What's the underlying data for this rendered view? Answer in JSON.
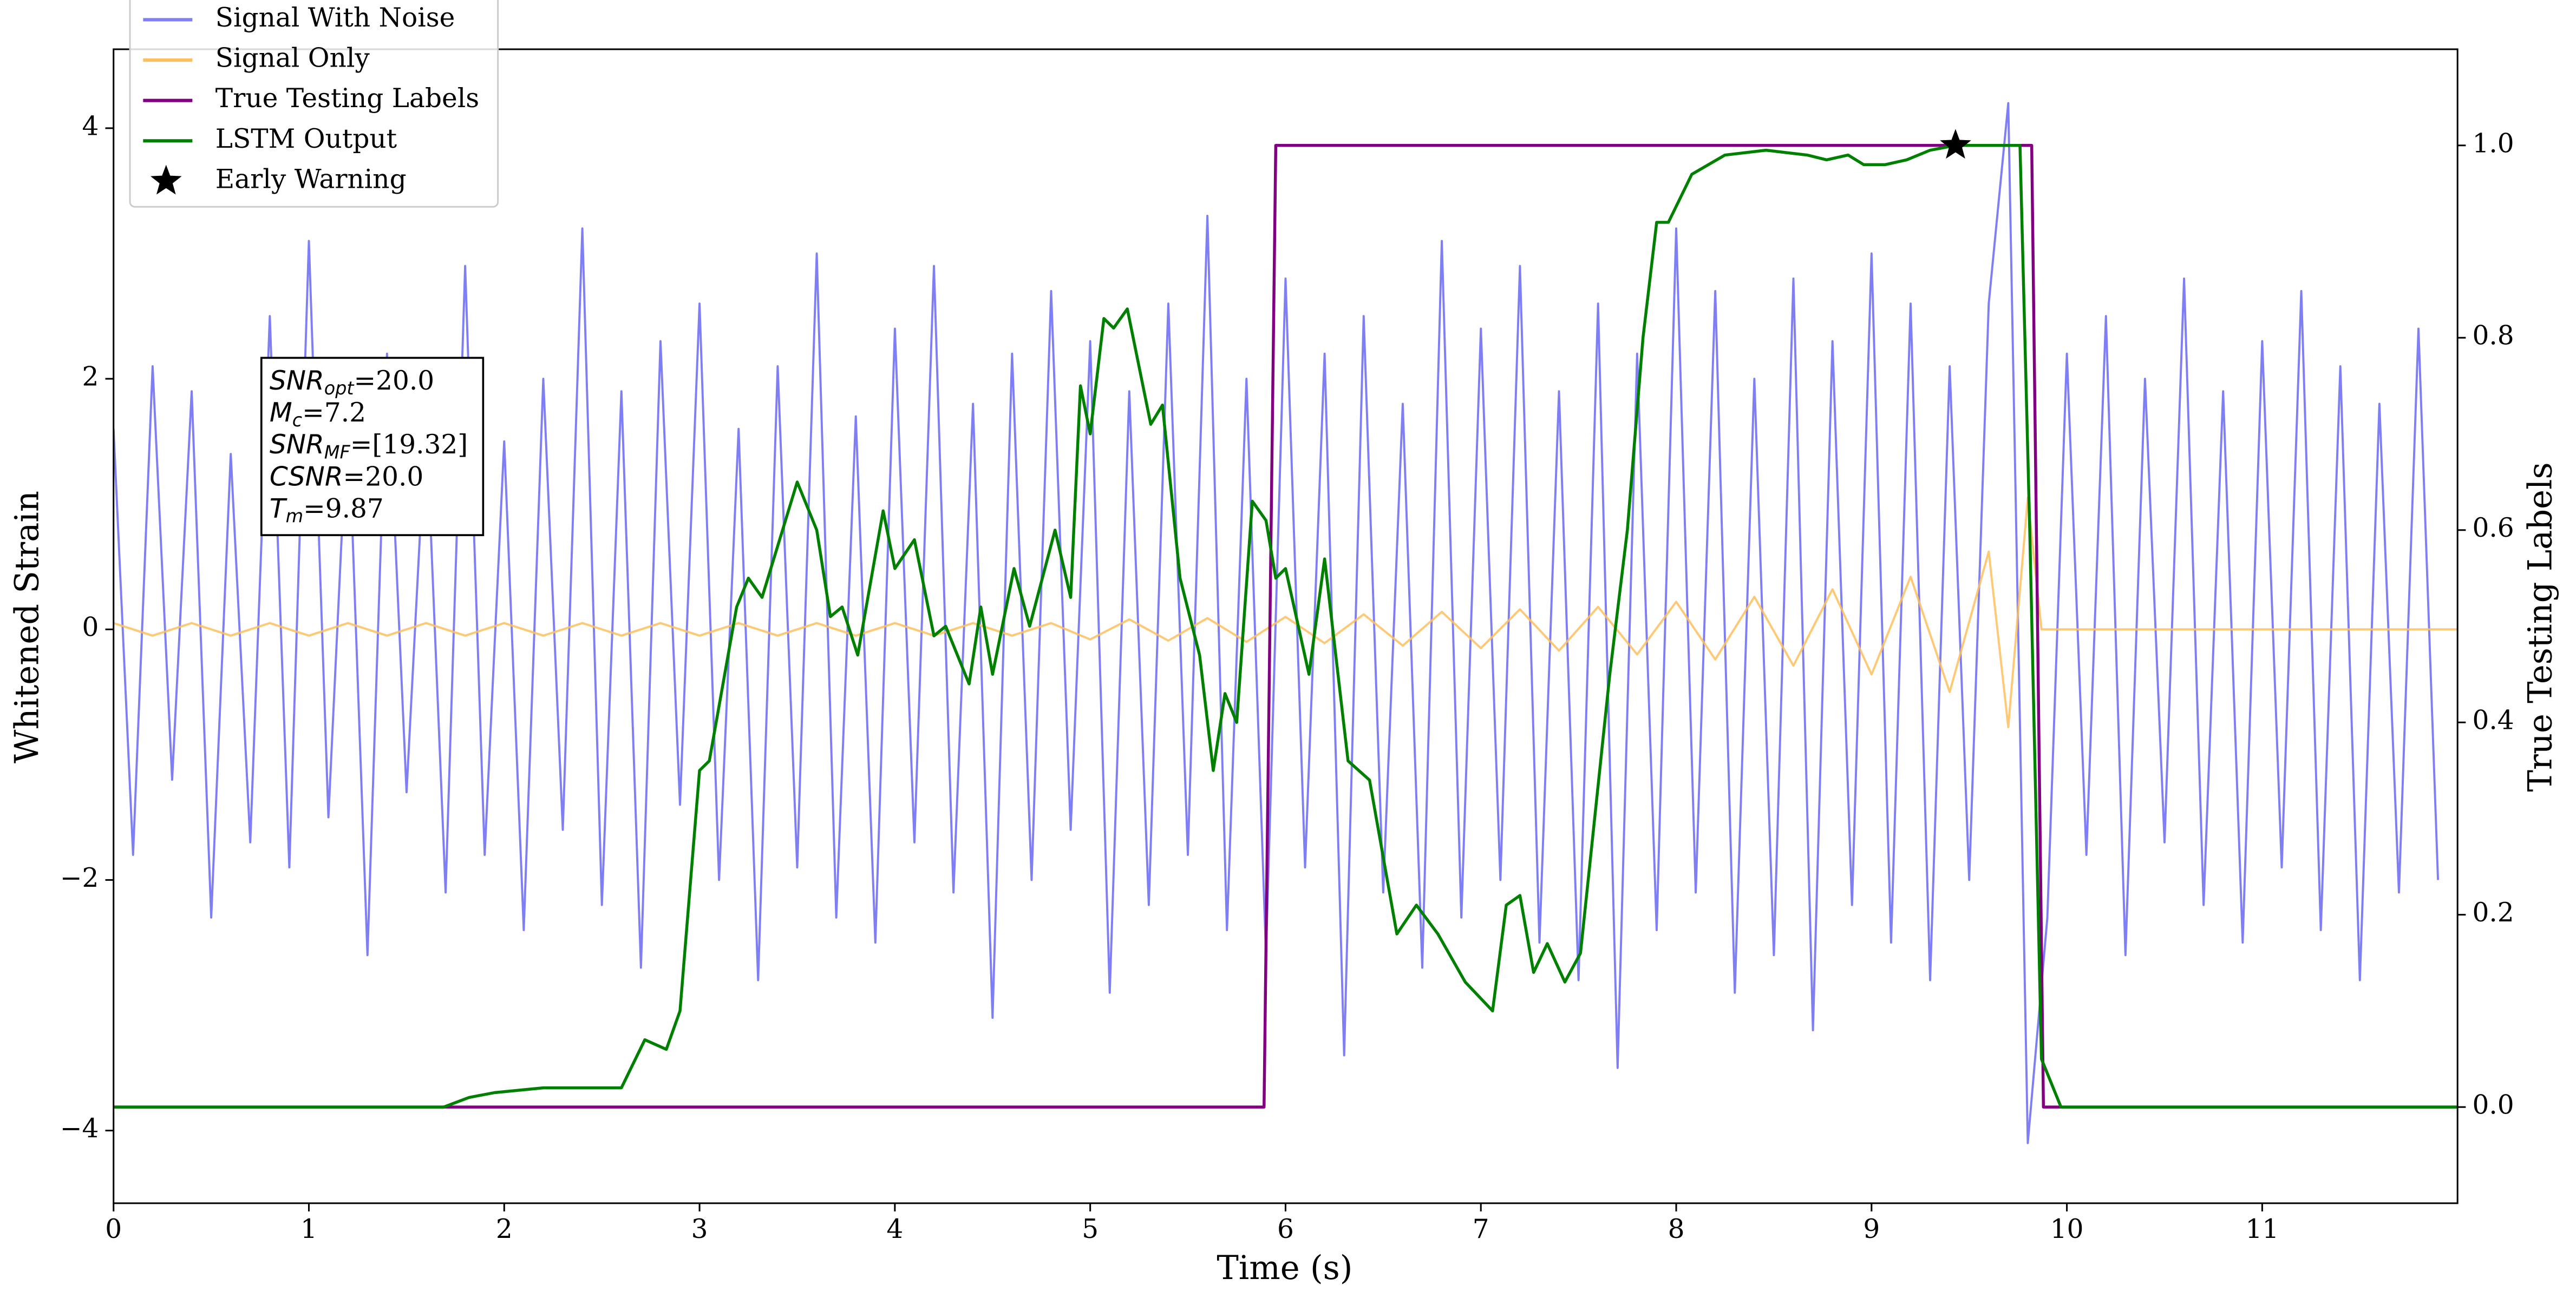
{
  "chart_data": {
    "type": "line",
    "xlabel": "Time (s)",
    "ylabel": "Whitened Strain",
    "y2label": "True Testing Labels",
    "xlim": [
      0,
      12.0
    ],
    "ylim": [
      -4.58,
      4.63
    ],
    "y2lim": [
      -0.1,
      1.1
    ],
    "xticks": [
      0,
      1,
      2,
      3,
      4,
      5,
      6,
      7,
      8,
      9,
      10,
      11
    ],
    "yticks": [
      {
        "value": -4,
        "label": "−4"
      },
      {
        "value": -2,
        "label": "−2"
      },
      0,
      2,
      4
    ],
    "y2ticks": [
      {
        "value": 0,
        "label": "0.0"
      },
      {
        "value": 0.2,
        "label": "0.2"
      },
      {
        "value": 0.4,
        "label": "0.4"
      },
      {
        "value": 0.6,
        "label": "0.6"
      },
      {
        "value": 0.8,
        "label": "0.8"
      },
      {
        "value": 1,
        "label": "1.0"
      }
    ],
    "legend": "upper left",
    "series": [
      {
        "name": "Signal With Noise",
        "color": "#7f7ff5",
        "x": [
          0,
          0.1,
          0.2,
          0.3,
          0.4,
          0.5,
          0.6,
          0.7,
          0.8,
          0.9,
          1,
          1.1,
          1.2,
          1.3,
          1.4,
          1.5,
          1.6,
          1.7,
          1.8,
          1.9,
          2,
          2.1,
          2.2,
          2.3,
          2.4,
          2.5,
          2.6,
          2.7,
          2.8,
          2.9,
          3,
          3.1,
          3.2,
          3.3,
          3.4,
          3.5,
          3.6,
          3.7,
          3.8,
          3.9,
          4,
          4.1,
          4.2,
          4.3,
          4.4,
          4.5,
          4.6,
          4.7,
          4.8,
          4.9,
          5,
          5.1,
          5.2,
          5.3,
          5.4,
          5.5,
          5.6,
          5.7,
          5.8,
          5.9,
          6,
          6.1,
          6.2,
          6.3,
          6.4,
          6.5,
          6.6,
          6.7,
          6.8,
          6.9,
          7,
          7.1,
          7.2,
          7.3,
          7.4,
          7.5,
          7.6,
          7.7,
          7.8,
          7.9,
          8,
          8.1,
          8.2,
          8.3,
          8.4,
          8.5,
          8.6,
          8.7,
          8.8,
          8.9,
          9,
          9.1,
          9.2,
          9.3,
          9.4,
          9.5,
          9.6,
          9.7,
          9.8,
          9.9,
          10,
          10.1,
          10.2,
          10.3,
          10.4,
          10.5,
          10.6,
          10.7,
          10.8,
          10.9,
          11,
          11.1,
          11.2,
          11.3,
          11.4,
          11.5,
          11.6,
          11.7,
          11.8,
          11.9
        ],
        "values": [
          1.6,
          -1.8,
          2.1,
          -1.2,
          1.9,
          -2.3,
          1.4,
          -1.7,
          2.5,
          -1.9,
          3.1,
          -1.5,
          1.8,
          -2.6,
          2.2,
          -1.3,
          1.7,
          -2.1,
          2.9,
          -1.8,
          1.5,
          -2.4,
          2.0,
          -1.6,
          3.2,
          -2.2,
          1.9,
          -2.7,
          2.3,
          -1.4,
          2.6,
          -2.0,
          1.6,
          -2.8,
          2.1,
          -1.9,
          3.0,
          -2.3,
          1.7,
          -2.5,
          2.4,
          -1.7,
          2.9,
          -2.1,
          1.8,
          -3.1,
          2.2,
          -2.0,
          2.7,
          -1.6,
          2.3,
          -2.9,
          1.9,
          -2.2,
          2.6,
          -1.8,
          3.3,
          -2.4,
          2.0,
          -2.6,
          2.8,
          -1.9,
          2.2,
          -3.4,
          2.5,
          -2.1,
          1.8,
          -2.7,
          3.1,
          -2.3,
          2.4,
          -2.0,
          2.9,
          -2.5,
          1.9,
          -2.8,
          2.6,
          -3.5,
          2.2,
          -2.4,
          3.2,
          -2.1,
          2.7,
          -2.9,
          2.0,
          -2.6,
          2.8,
          -3.2,
          2.3,
          -2.2,
          3.0,
          -2.5,
          2.6,
          -2.8,
          2.1,
          -2.0,
          2.6,
          4.2,
          -4.1,
          -2.3,
          2.2,
          -1.8,
          2.5,
          -2.6,
          2.0,
          -1.7,
          2.8,
          -2.2,
          1.9,
          -2.5,
          2.3,
          -1.9,
          2.7,
          -2.4,
          2.1,
          -2.8,
          1.8,
          -2.1,
          2.4,
          -2.0
        ]
      },
      {
        "name": "Signal Only",
        "color": "#ffbe5c",
        "x": [
          0,
          0.2,
          0.4,
          0.6,
          0.8,
          1,
          1.2,
          1.4,
          1.6,
          1.8,
          2,
          2.2,
          2.4,
          2.6,
          2.8,
          3,
          3.2,
          3.4,
          3.6,
          3.8,
          4,
          4.2,
          4.4,
          4.6,
          4.8,
          5,
          5.2,
          5.4,
          5.6,
          5.8,
          6,
          6.2,
          6.4,
          6.6,
          6.8,
          7,
          7.2,
          7.4,
          7.6,
          7.8,
          8,
          8.2,
          8.4,
          8.6,
          8.8,
          9,
          9.2,
          9.4,
          9.6,
          9.7,
          9.8,
          9.87,
          12
        ],
        "values": [
          0.05,
          -0.05,
          0.05,
          -0.05,
          0.05,
          -0.05,
          0.05,
          -0.05,
          0.05,
          -0.05,
          0.05,
          -0.05,
          0.05,
          -0.05,
          0.05,
          -0.05,
          0.05,
          -0.05,
          0.05,
          -0.05,
          0.05,
          -0.05,
          0.05,
          -0.05,
          0.05,
          -0.08,
          0.08,
          -0.09,
          0.09,
          -0.1,
          0.1,
          -0.11,
          0.12,
          -0.13,
          0.14,
          -0.15,
          0.16,
          -0.17,
          0.18,
          -0.2,
          0.22,
          -0.24,
          0.26,
          -0.29,
          0.32,
          -0.36,
          0.42,
          -0.5,
          0.62,
          -0.78,
          1.05,
          0,
          0
        ]
      },
      {
        "name": "True Testing Labels",
        "color": "#800080",
        "axis": "y2",
        "x": [
          0,
          5.89,
          5.95,
          9.82,
          9.88,
          12
        ],
        "values": [
          0,
          0,
          1,
          1,
          0,
          0
        ]
      },
      {
        "name": "LSTM Output",
        "color": "#008000",
        "axis": "y2",
        "x": [
          0,
          1.69,
          1.82,
          1.95,
          2.2,
          2.6,
          2.72,
          2.83,
          2.9,
          3.0,
          3.05,
          3.19,
          3.25,
          3.32,
          3.5,
          3.6,
          3.67,
          3.73,
          3.81,
          3.94,
          4.0,
          4.1,
          4.2,
          4.26,
          4.38,
          4.44,
          4.5,
          4.61,
          4.69,
          4.82,
          4.9,
          4.95,
          5.0,
          5.07,
          5.12,
          5.19,
          5.31,
          5.37,
          5.46,
          5.56,
          5.63,
          5.69,
          5.75,
          5.83,
          5.9,
          5.95,
          6.0,
          6.12,
          6.2,
          6.32,
          6.43,
          6.57,
          6.67,
          6.78,
          6.92,
          7.06,
          7.13,
          7.2,
          7.27,
          7.34,
          7.43,
          7.51,
          7.66,
          7.75,
          7.83,
          7.9,
          7.96,
          8.08,
          8.25,
          8.46,
          8.67,
          8.77,
          8.88,
          8.96,
          9.07,
          9.18,
          9.3,
          9.43,
          9.76,
          9.81,
          9.87,
          9.97,
          12
        ],
        "values": [
          0,
          0,
          0.01,
          0.015,
          0.02,
          0.02,
          0.07,
          0.06,
          0.1,
          0.35,
          0.36,
          0.52,
          0.55,
          0.53,
          0.65,
          0.6,
          0.51,
          0.52,
          0.47,
          0.62,
          0.56,
          0.59,
          0.49,
          0.5,
          0.44,
          0.52,
          0.45,
          0.56,
          0.5,
          0.6,
          0.53,
          0.75,
          0.7,
          0.82,
          0.81,
          0.83,
          0.71,
          0.73,
          0.55,
          0.47,
          0.35,
          0.43,
          0.4,
          0.63,
          0.61,
          0.55,
          0.56,
          0.45,
          0.57,
          0.36,
          0.34,
          0.18,
          0.21,
          0.18,
          0.13,
          0.1,
          0.21,
          0.22,
          0.14,
          0.17,
          0.13,
          0.16,
          0.45,
          0.6,
          0.8,
          0.92,
          0.92,
          0.97,
          0.99,
          0.995,
          0.99,
          0.985,
          0.99,
          0.98,
          0.98,
          0.985,
          0.995,
          1.0,
          1.0,
          0.6,
          0.05,
          0,
          0
        ]
      },
      {
        "name": "Early Warning",
        "color": "#000000",
        "axis": "y2",
        "marker": "star",
        "x": [
          9.43
        ],
        "values": [
          1.0
        ]
      }
    ],
    "annotations": [
      {
        "symbol": "SNR",
        "subscript": "opt",
        "text": "=20.0"
      },
      {
        "symbol": "M",
        "subscript": "c",
        "text": "=7.2"
      },
      {
        "symbol": "SNR",
        "subscript": "MF",
        "text": "=[19.32]"
      },
      {
        "symbol": "CSNR",
        "text": "=20.0"
      },
      {
        "symbol": "T",
        "subscript": "m",
        "text": "=9.87"
      }
    ]
  }
}
